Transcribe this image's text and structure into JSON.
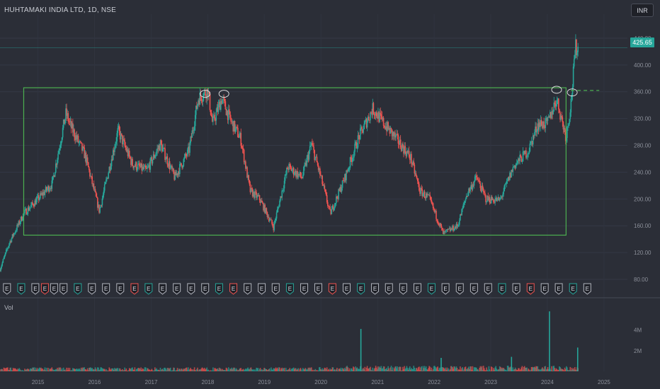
{
  "header": {
    "ticker_label": "HUHTAMAKI INDIA LTD, 1D, NSE",
    "currency_button": "INR",
    "last_price_label": "425.65"
  },
  "volume_pane": {
    "label": "Vol"
  },
  "colors": {
    "background": "#2b2e37",
    "up": "#26a69a",
    "down": "#ef5350",
    "range_box": "#4caf50",
    "dividend_badge": "#2962ff"
  },
  "chart_data": [
    {
      "type": "candlestick",
      "title": "HUHTAMAKI INDIA LTD, 1D, NSE",
      "x": [
        "2014-05",
        "2014-07",
        "2014-10",
        "2015-01",
        "2015-04",
        "2015-07",
        "2015-08",
        "2015-11",
        "2016-02",
        "2016-04",
        "2016-06",
        "2016-09",
        "2016-12",
        "2017-03",
        "2017-06",
        "2017-09",
        "2017-11",
        "2018-01",
        "2018-02",
        "2018-04",
        "2018-06",
        "2018-08",
        "2018-10",
        "2018-12",
        "2019-03",
        "2019-06",
        "2019-09",
        "2019-11",
        "2020-01",
        "2020-03",
        "2020-06",
        "2020-09",
        "2020-12",
        "2021-02",
        "2021-05",
        "2021-08",
        "2021-10",
        "2021-12",
        "2022-03",
        "2022-06",
        "2022-08",
        "2022-10",
        "2022-12",
        "2023-03",
        "2023-06",
        "2023-09",
        "2023-11",
        "2024-01",
        "2024-03",
        "2024-05",
        "2024-06",
        "2024-07"
      ],
      "close": [
        95,
        135,
        178,
        200,
        222,
        328,
        308,
        265,
        182,
        242,
        302,
        252,
        242,
        282,
        232,
        272,
        350,
        362,
        312,
        350,
        315,
        290,
        212,
        200,
        158,
        248,
        232,
        282,
        232,
        178,
        230,
        292,
        335,
        315,
        290,
        262,
        212,
        200,
        148,
        160,
        208,
        232,
        200,
        198,
        250,
        272,
        312,
        312,
        350,
        292,
        342,
        425.65
      ],
      "xlim": [
        "2014-05-01",
        "2025-06-01"
      ],
      "ylim": [
        80,
        460
      ],
      "y_ticks": [
        "80.00",
        "120.00",
        "160.00",
        "200.00",
        "240.00",
        "280.00",
        "320.00",
        "360.00",
        "400.00",
        "440.00"
      ],
      "x_ticks": [
        "2015",
        "2016",
        "2017",
        "2018",
        "2019",
        "2020",
        "2021",
        "2022",
        "2023",
        "2024",
        "2025"
      ],
      "last_price": 425.65,
      "annotations": {
        "range_box": {
          "x0": "2014-10-01",
          "x1": "2024-05-01",
          "y0": 146,
          "y1": 366
        },
        "breakout_level": {
          "x0": "2024-06-01",
          "x1": "2024-12-01",
          "y": 362
        },
        "circled_highs": [
          {
            "x": "2017-12-15",
            "y": 357
          },
          {
            "x": "2018-04-15",
            "y": 357
          },
          {
            "x": "2024-03-01",
            "y": 363
          },
          {
            "x": "2024-06-10",
            "y": 359
          }
        ],
        "earnings_markers": [
          "2014-06",
          "2014-09",
          "2014-12",
          "2015-02",
          "2015-04",
          "2015-06",
          "2015-09",
          "2015-12",
          "2016-03",
          "2016-06",
          "2016-09",
          "2016-12",
          "2017-03",
          "2017-06",
          "2017-09",
          "2017-12",
          "2018-03",
          "2018-06",
          "2018-09",
          "2018-12",
          "2019-03",
          "2019-06",
          "2019-09",
          "2019-12",
          "2020-03",
          "2020-06",
          "2020-09",
          "2020-12",
          "2021-03",
          "2021-06",
          "2021-09",
          "2021-12",
          "2022-03",
          "2022-06",
          "2022-09",
          "2022-12",
          "2023-03",
          "2023-06",
          "2023-09",
          "2023-12",
          "2024-03",
          "2024-06",
          "2024-09"
        ],
        "earnings_label": "E"
      }
    },
    {
      "type": "bar",
      "title": "Vol",
      "y_ticks": [
        "2M",
        "4M"
      ],
      "spikes": [
        {
          "x": "2020-09",
          "volume": 4.1
        },
        {
          "x": "2022-02",
          "volume": 1.3
        },
        {
          "x": "2023-05",
          "volume": 1.4
        },
        {
          "x": "2024-01",
          "volume": 5.8
        },
        {
          "x": "2024-07",
          "volume": 2.3
        }
      ]
    }
  ]
}
